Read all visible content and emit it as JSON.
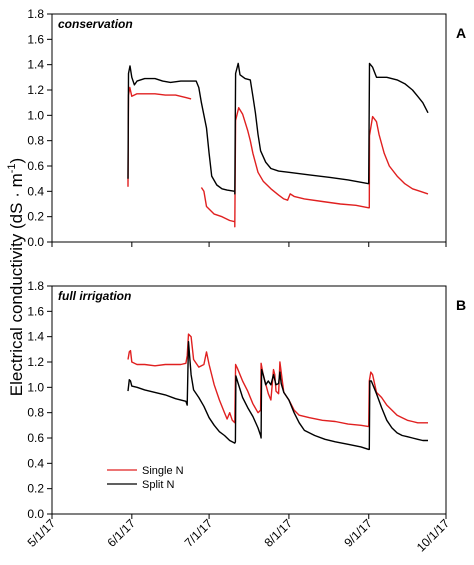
{
  "ylabel_main": "Electrical conductivity (dS · m",
  "ylabel_sup": "-1",
  "ylabel_close": ")",
  "colors": {
    "single": "#e02020",
    "split": "#000000",
    "axis": "#000000"
  },
  "legend": {
    "single": "Single N",
    "split": "Split N",
    "placement": "lower-left of panel B"
  },
  "chart_data": [
    {
      "type": "line",
      "panel_letter": "A",
      "title": "conservation",
      "xlabel": "",
      "ylabel": "",
      "x_ticks": [
        "5/1/17",
        "6/1/17",
        "7/1/17",
        "8/1/17",
        "9/1/17",
        "10/1/17"
      ],
      "x_tick_days": [
        0,
        31,
        61,
        92,
        123,
        153
      ],
      "xlim_days": [
        0,
        153
      ],
      "ylim": [
        0,
        1.8
      ],
      "y_ticks": [
        "0.0",
        "0.2",
        "0.4",
        "0.6",
        "0.8",
        "1.0",
        "1.2",
        "1.4",
        "1.6",
        "1.8"
      ],
      "series": [
        {
          "name": "Single N",
          "color": "#e02020",
          "segments": [
            [
              [
                29.5,
                0.5
              ],
              [
                29.5,
                0.44
              ],
              [
                29.7,
                1.16
              ],
              [
                30.2,
                1.22
              ],
              [
                31,
                1.15
              ],
              [
                33,
                1.17
              ],
              [
                36,
                1.17
              ],
              [
                40,
                1.17
              ],
              [
                44,
                1.16
              ],
              [
                48,
                1.16
              ],
              [
                52,
                1.14
              ],
              [
                54,
                1.13
              ]
            ],
            [
              [
                58,
                0.43
              ],
              [
                59,
                0.4
              ],
              [
                60,
                0.28
              ],
              [
                63,
                0.22
              ],
              [
                66,
                0.2
              ],
              [
                69,
                0.17
              ],
              [
                71,
                0.16
              ],
              [
                71,
                0.12
              ],
              [
                71.3,
                0.96
              ],
              [
                72.5,
                1.06
              ],
              [
                74,
                1.01
              ],
              [
                76,
                0.88
              ],
              [
                77,
                0.8
              ],
              [
                78,
                0.7
              ],
              [
                80,
                0.55
              ],
              [
                82,
                0.48
              ],
              [
                85,
                0.42
              ],
              [
                88,
                0.37
              ],
              [
                90,
                0.34
              ],
              [
                91.5,
                0.33
              ],
              [
                92.5,
                0.38
              ],
              [
                94,
                0.36
              ],
              [
                98,
                0.34
              ],
              [
                105,
                0.32
              ],
              [
                112,
                0.3
              ],
              [
                118,
                0.29
              ],
              [
                123,
                0.27
              ],
              [
                123.2,
                0.27
              ],
              [
                123.3,
                0.84
              ],
              [
                124.5,
                0.99
              ],
              [
                126,
                0.95
              ],
              [
                127,
                0.85
              ],
              [
                129,
                0.7
              ],
              [
                131,
                0.6
              ],
              [
                134,
                0.52
              ],
              [
                137,
                0.46
              ],
              [
                140,
                0.42
              ],
              [
                143,
                0.4
              ],
              [
                146,
                0.38
              ]
            ]
          ]
        },
        {
          "name": "Split N",
          "color": "#000000",
          "segments": [
            [
              [
                29.5,
                0.5
              ],
              [
                29.7,
                1.33
              ],
              [
                30.3,
                1.39
              ],
              [
                31,
                1.3
              ],
              [
                32,
                1.24
              ],
              [
                33,
                1.27
              ],
              [
                36,
                1.29
              ],
              [
                40,
                1.29
              ],
              [
                43,
                1.27
              ],
              [
                46,
                1.26
              ],
              [
                50,
                1.27
              ],
              [
                54,
                1.27
              ],
              [
                56,
                1.27
              ],
              [
                57,
                1.22
              ],
              [
                58,
                1.1
              ],
              [
                60,
                0.9
              ],
              [
                61,
                0.7
              ],
              [
                62,
                0.52
              ],
              [
                64,
                0.45
              ],
              [
                66,
                0.42
              ],
              [
                68,
                0.41
              ],
              [
                71,
                0.4
              ],
              [
                71,
                0.38
              ],
              [
                71.3,
                1.33
              ],
              [
                72.3,
                1.41
              ],
              [
                73,
                1.32
              ],
              [
                75,
                1.29
              ],
              [
                77,
                1.28
              ],
              [
                78,
                1.15
              ],
              [
                79,
                1.02
              ],
              [
                80,
                0.85
              ],
              [
                81,
                0.72
              ],
              [
                83,
                0.63
              ],
              [
                85,
                0.58
              ],
              [
                88,
                0.56
              ],
              [
                92,
                0.55
              ],
              [
                100,
                0.53
              ],
              [
                108,
                0.51
              ],
              [
                115,
                0.49
              ],
              [
                123,
                0.46
              ],
              [
                123.3,
                1.41
              ],
              [
                124.5,
                1.38
              ],
              [
                126,
                1.3
              ],
              [
                130,
                1.3
              ],
              [
                134,
                1.28
              ],
              [
                137,
                1.25
              ],
              [
                140,
                1.2
              ],
              [
                142,
                1.15
              ],
              [
                144,
                1.1
              ],
              [
                146,
                1.02
              ]
            ]
          ]
        }
      ]
    },
    {
      "type": "line",
      "panel_letter": "B",
      "title": "full irrigation",
      "xlabel": "",
      "ylabel": "",
      "x_ticks": [
        "5/1/17",
        "6/1/17",
        "7/1/17",
        "8/1/17",
        "9/1/17",
        "10/1/17"
      ],
      "x_tick_days": [
        0,
        31,
        61,
        92,
        123,
        153
      ],
      "xlim_days": [
        0,
        153
      ],
      "ylim": [
        0,
        1.8
      ],
      "y_ticks": [
        "0.0",
        "0.2",
        "0.4",
        "0.6",
        "0.8",
        "1.0",
        "1.2",
        "1.4",
        "1.6",
        "1.8"
      ],
      "series": [
        {
          "name": "Single N",
          "color": "#e02020",
          "segments": [
            [
              [
                29.5,
                1.22
              ],
              [
                30,
                1.28
              ],
              [
                30.5,
                1.29
              ],
              [
                31,
                1.2
              ],
              [
                33,
                1.18
              ],
              [
                36,
                1.18
              ],
              [
                40,
                1.17
              ],
              [
                44,
                1.18
              ],
              [
                47,
                1.18
              ],
              [
                50,
                1.18
              ],
              [
                52,
                1.19
              ],
              [
                52.5,
                1.25
              ],
              [
                53,
                1.42
              ],
              [
                54,
                1.4
              ],
              [
                55,
                1.22
              ],
              [
                57,
                1.16
              ],
              [
                59,
                1.18
              ],
              [
                60,
                1.28
              ],
              [
                61,
                1.18
              ],
              [
                63,
                1.02
              ],
              [
                65,
                0.9
              ],
              [
                67,
                0.8
              ],
              [
                68,
                0.75
              ],
              [
                69,
                0.8
              ],
              [
                70,
                0.74
              ],
              [
                71,
                0.72
              ],
              [
                71.3,
                1.18
              ],
              [
                72,
                1.15
              ],
              [
                74,
                1.05
              ],
              [
                76,
                0.97
              ],
              [
                78,
                0.87
              ],
              [
                80,
                0.8
              ],
              [
                81,
                0.82
              ],
              [
                81.2,
                1.19
              ],
              [
                82,
                1.1
              ],
              [
                84,
                0.95
              ],
              [
                85,
                0.9
              ],
              [
                86,
                1.14
              ],
              [
                86.5,
                1.1
              ],
              [
                87,
                0.97
              ],
              [
                88,
                0.95
              ],
              [
                88.5,
                1.2
              ],
              [
                89,
                1.12
              ],
              [
                90,
                0.96
              ],
              [
                92,
                0.9
              ],
              [
                94,
                0.82
              ],
              [
                96,
                0.78
              ],
              [
                100,
                0.76
              ],
              [
                105,
                0.74
              ],
              [
                110,
                0.73
              ],
              [
                115,
                0.71
              ],
              [
                120,
                0.7
              ],
              [
                123,
                0.69
              ],
              [
                123.2,
                1.05
              ],
              [
                123.8,
                1.12
              ],
              [
                124.5,
                1.1
              ],
              [
                126,
                0.96
              ],
              [
                128,
                0.92
              ],
              [
                130,
                0.86
              ],
              [
                132,
                0.82
              ],
              [
                134,
                0.78
              ],
              [
                136,
                0.76
              ],
              [
                138,
                0.74
              ],
              [
                140,
                0.73
              ],
              [
                142,
                0.72
              ],
              [
                144,
                0.72
              ],
              [
                146,
                0.72
              ]
            ]
          ]
        },
        {
          "name": "Split N",
          "color": "#000000",
          "segments": [
            [
              [
                29.5,
                0.97
              ],
              [
                30,
                1.06
              ],
              [
                30.5,
                1.05
              ],
              [
                31,
                1.01
              ],
              [
                33,
                1.0
              ],
              [
                36,
                0.98
              ],
              [
                40,
                0.96
              ],
              [
                44,
                0.94
              ],
              [
                48,
                0.91
              ],
              [
                52,
                0.89
              ],
              [
                52.5,
                0.86
              ],
              [
                53,
                1.36
              ],
              [
                54,
                1.1
              ],
              [
                55,
                0.98
              ],
              [
                57,
                0.92
              ],
              [
                59,
                0.85
              ],
              [
                61,
                0.76
              ],
              [
                63,
                0.7
              ],
              [
                65,
                0.65
              ],
              [
                67,
                0.62
              ],
              [
                69,
                0.58
              ],
              [
                71,
                0.56
              ],
              [
                71.2,
                0.57
              ],
              [
                71.4,
                1.09
              ],
              [
                72,
                1.05
              ],
              [
                74,
                0.92
              ],
              [
                76,
                0.84
              ],
              [
                78,
                0.77
              ],
              [
                80,
                0.68
              ],
              [
                81,
                0.62
              ],
              [
                81.2,
                0.6
              ],
              [
                81.4,
                1.14
              ],
              [
                82,
                1.1
              ],
              [
                83,
                1.02
              ],
              [
                84,
                1.05
              ],
              [
                85,
                1.02
              ],
              [
                86,
                1.1
              ],
              [
                87,
                1.02
              ],
              [
                88,
                1.03
              ],
              [
                88.5,
                1.12
              ],
              [
                89,
                1.03
              ],
              [
                90,
                0.96
              ],
              [
                92,
                0.9
              ],
              [
                94,
                0.8
              ],
              [
                96,
                0.72
              ],
              [
                98,
                0.66
              ],
              [
                102,
                0.62
              ],
              [
                106,
                0.59
              ],
              [
                110,
                0.57
              ],
              [
                115,
                0.55
              ],
              [
                120,
                0.53
              ],
              [
                123,
                0.51
              ],
              [
                123.2,
                0.51
              ],
              [
                123.4,
                1.05
              ],
              [
                124,
                1.05
              ],
              [
                125,
                1.0
              ],
              [
                126,
                0.95
              ],
              [
                128,
                0.84
              ],
              [
                130,
                0.74
              ],
              [
                132,
                0.68
              ],
              [
                134,
                0.64
              ],
              [
                136,
                0.62
              ],
              [
                138,
                0.61
              ],
              [
                140,
                0.6
              ],
              [
                142,
                0.59
              ],
              [
                144,
                0.58
              ],
              [
                146,
                0.58
              ]
            ]
          ]
        }
      ]
    }
  ]
}
